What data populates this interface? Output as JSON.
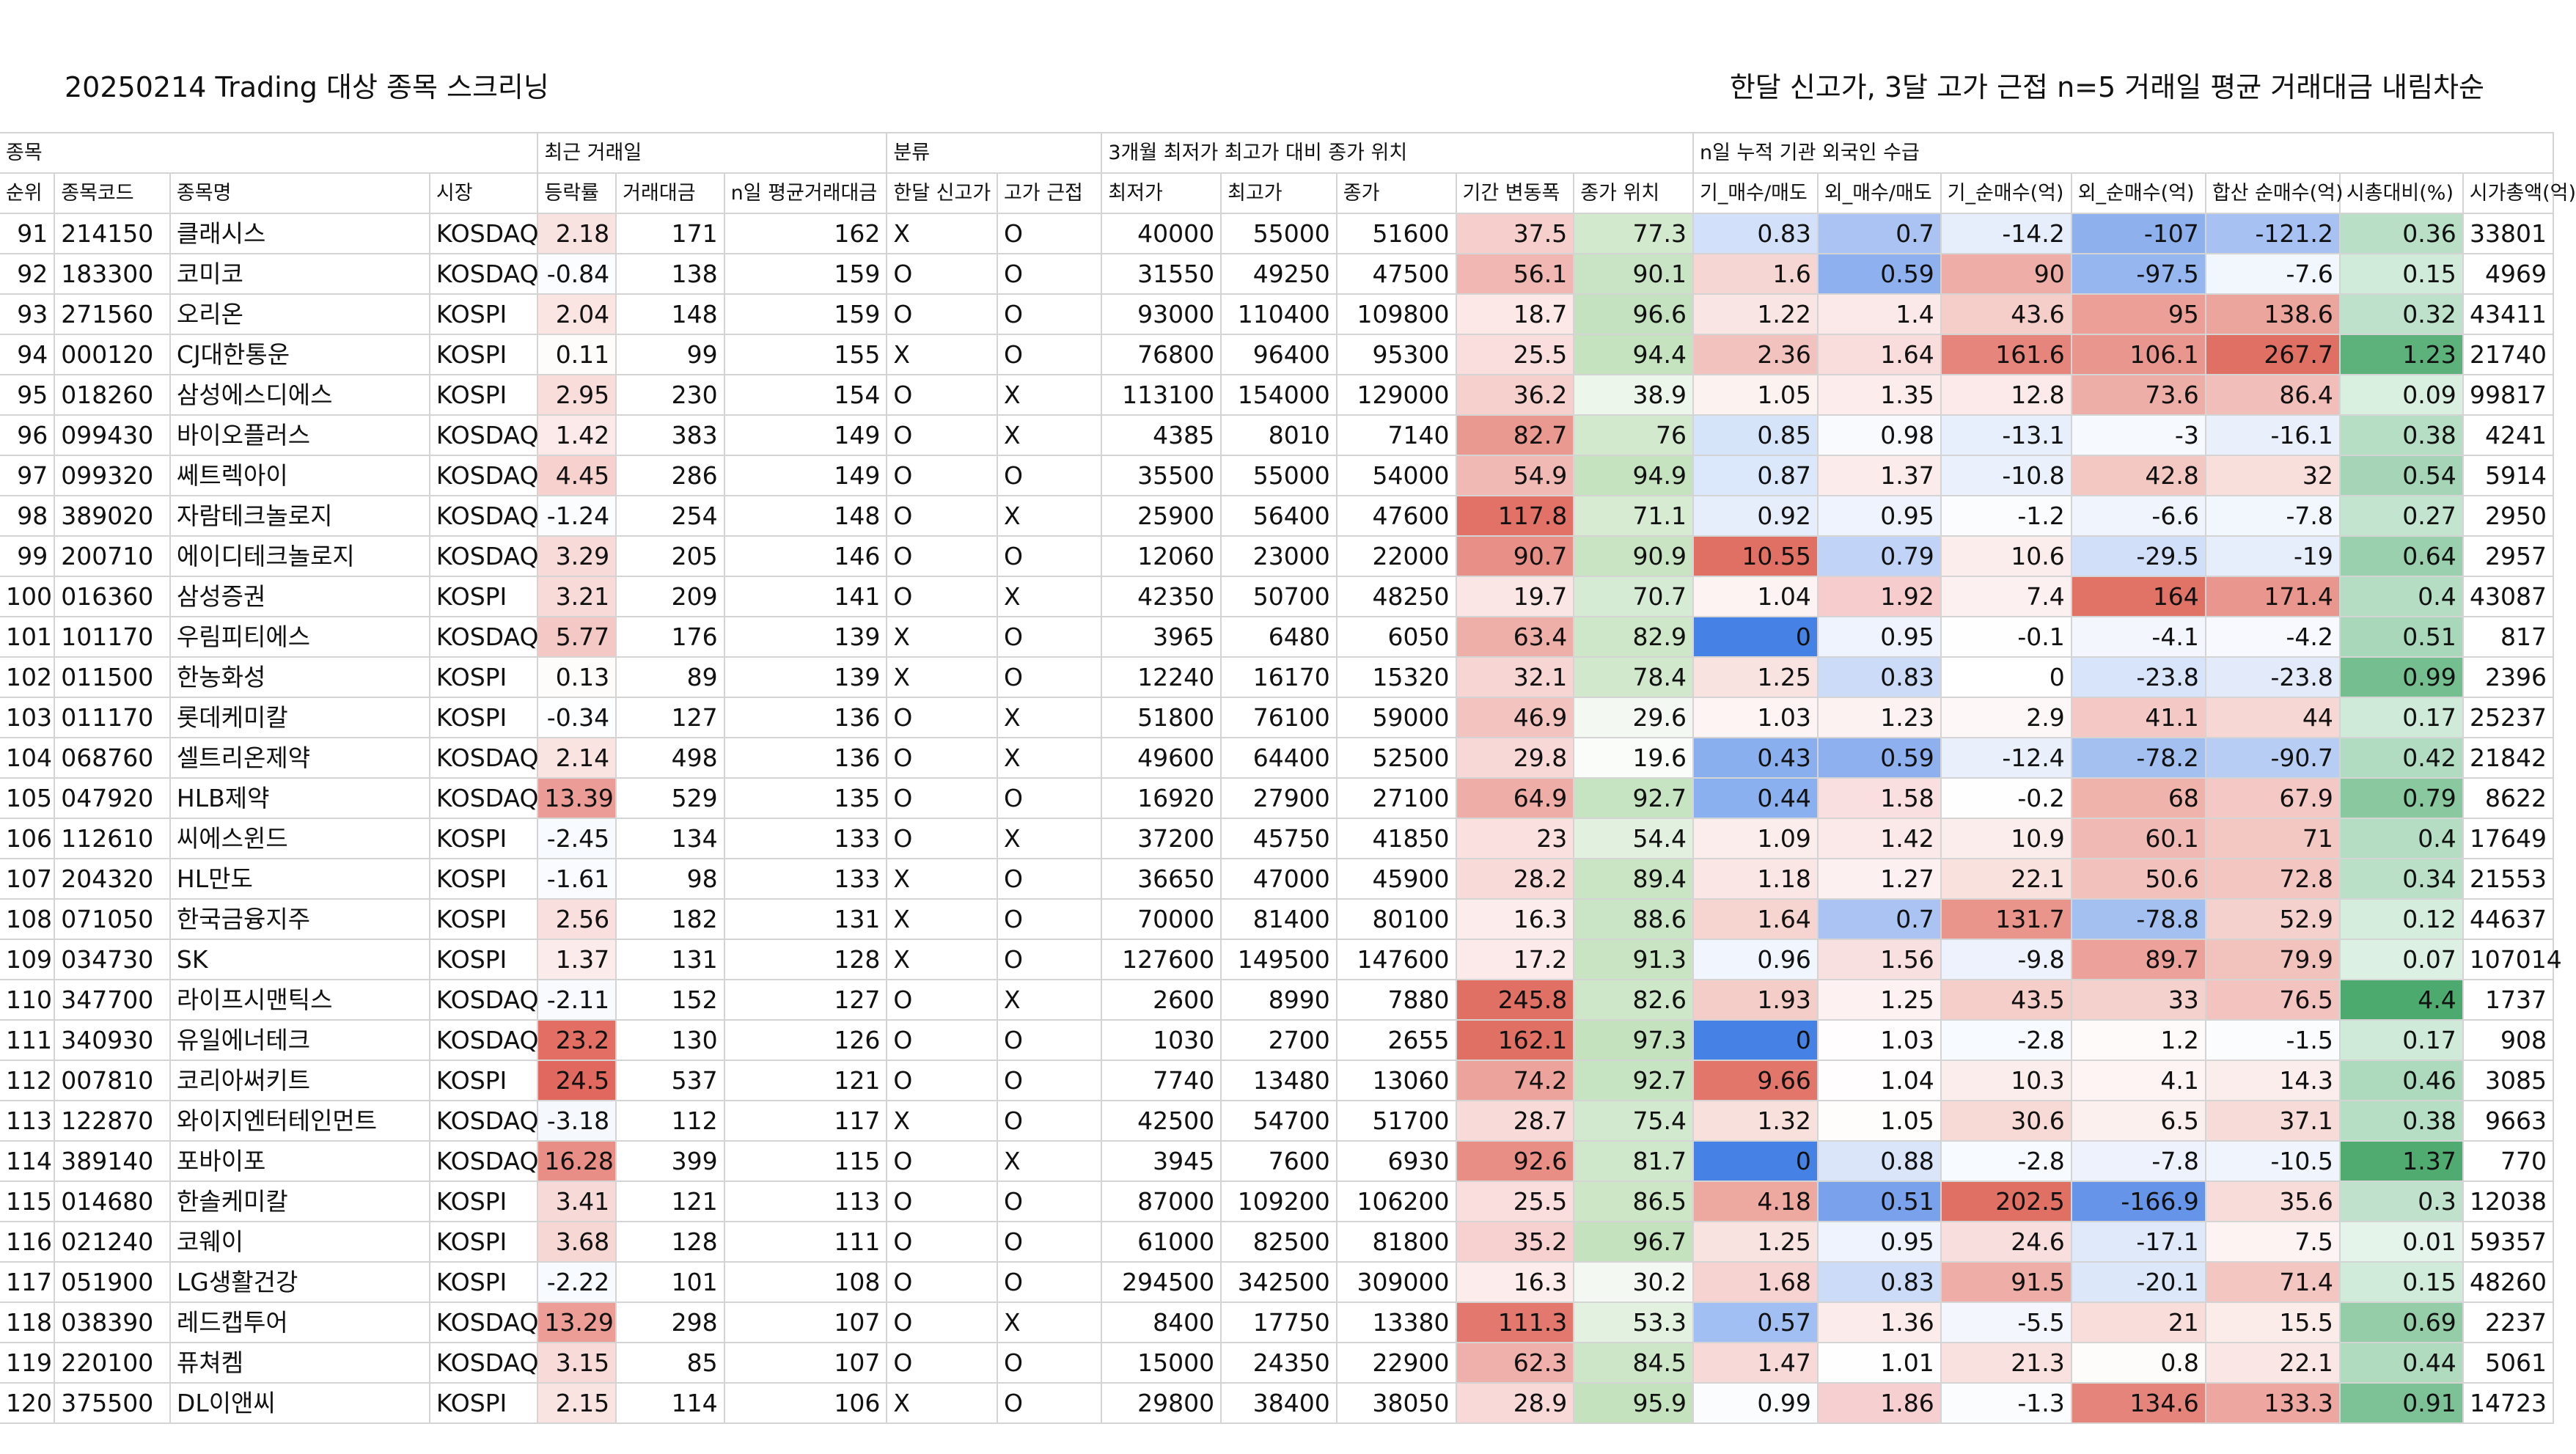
{
  "title": {
    "left": "20250214 Trading 대상 종목 스크리닝",
    "right": "한달 신고가, 3달 고가 근접 n=5 거래일 평균 거래대금 내림차순"
  },
  "groups": {
    "stock": "종목",
    "recent": "최근 거래일",
    "classify": "분류",
    "position": "3개월 최저가 최고가 대비 종가 위치",
    "flow": "n일 누적 기관 외국인 수급"
  },
  "headers": [
    "순위",
    "종목코드",
    "종목명",
    "시장",
    "등락률",
    "거래대금",
    "n일 평균거래대금",
    "한달 신고가",
    "고가 근접",
    "최저가",
    "최고가",
    "종가",
    "기간 변동폭",
    "종가 위치",
    "기_매수/매도",
    "외_매수/매도",
    "기_순매수(억)",
    "외_순매수(억)",
    "합산 순매수(억)",
    "시총대비(%)",
    "시가총액(억)"
  ],
  "rows": [
    [
      "91",
      "214150",
      "클래시스",
      "KOSDAQ",
      "2.18",
      "171",
      "162",
      "X",
      "O",
      "40000",
      "55000",
      "51600",
      "37.5",
      "77.3",
      "0.83",
      "0.7",
      "-14.2",
      "-107",
      "-121.2",
      "0.36",
      "33801"
    ],
    [
      "92",
      "183300",
      "코미코",
      "KOSDAQ",
      "-0.84",
      "138",
      "159",
      "O",
      "O",
      "31550",
      "49250",
      "47500",
      "56.1",
      "90.1",
      "1.6",
      "0.59",
      "90",
      "-97.5",
      "-7.6",
      "0.15",
      "4969"
    ],
    [
      "93",
      "271560",
      "오리온",
      "KOSPI",
      "2.04",
      "148",
      "159",
      "O",
      "O",
      "93000",
      "110400",
      "109800",
      "18.7",
      "96.6",
      "1.22",
      "1.4",
      "43.6",
      "95",
      "138.6",
      "0.32",
      "43411"
    ],
    [
      "94",
      "000120",
      "CJ대한통운",
      "KOSPI",
      "0.11",
      "99",
      "155",
      "X",
      "O",
      "76800",
      "96400",
      "95300",
      "25.5",
      "94.4",
      "2.36",
      "1.64",
      "161.6",
      "106.1",
      "267.7",
      "1.23",
      "21740"
    ],
    [
      "95",
      "018260",
      "삼성에스디에스",
      "KOSPI",
      "2.95",
      "230",
      "154",
      "O",
      "X",
      "113100",
      "154000",
      "129000",
      "36.2",
      "38.9",
      "1.05",
      "1.35",
      "12.8",
      "73.6",
      "86.4",
      "0.09",
      "99817"
    ],
    [
      "96",
      "099430",
      "바이오플러스",
      "KOSDAQ",
      "1.42",
      "383",
      "149",
      "O",
      "X",
      "4385",
      "8010",
      "7140",
      "82.7",
      "76",
      "0.85",
      "0.98",
      "-13.1",
      "-3",
      "-16.1",
      "0.38",
      "4241"
    ],
    [
      "97",
      "099320",
      "쎄트렉아이",
      "KOSDAQ",
      "4.45",
      "286",
      "149",
      "O",
      "O",
      "35500",
      "55000",
      "54000",
      "54.9",
      "94.9",
      "0.87",
      "1.37",
      "-10.8",
      "42.8",
      "32",
      "0.54",
      "5914"
    ],
    [
      "98",
      "389020",
      "자람테크놀로지",
      "KOSDAQ",
      "-1.24",
      "254",
      "148",
      "O",
      "X",
      "25900",
      "56400",
      "47600",
      "117.8",
      "71.1",
      "0.92",
      "0.95",
      "-1.2",
      "-6.6",
      "-7.8",
      "0.27",
      "2950"
    ],
    [
      "99",
      "200710",
      "에이디테크놀로지",
      "KOSDAQ",
      "3.29",
      "205",
      "146",
      "O",
      "O",
      "12060",
      "23000",
      "22000",
      "90.7",
      "90.9",
      "10.55",
      "0.79",
      "10.6",
      "-29.5",
      "-19",
      "0.64",
      "2957"
    ],
    [
      "100",
      "016360",
      "삼성증권",
      "KOSPI",
      "3.21",
      "209",
      "141",
      "O",
      "X",
      "42350",
      "50700",
      "48250",
      "19.7",
      "70.7",
      "1.04",
      "1.92",
      "7.4",
      "164",
      "171.4",
      "0.4",
      "43087"
    ],
    [
      "101",
      "101170",
      "우림피티에스",
      "KOSDAQ",
      "5.77",
      "176",
      "139",
      "X",
      "O",
      "3965",
      "6480",
      "6050",
      "63.4",
      "82.9",
      "0",
      "0.95",
      "-0.1",
      "-4.1",
      "-4.2",
      "0.51",
      "817"
    ],
    [
      "102",
      "011500",
      "한농화성",
      "KOSPI",
      "0.13",
      "89",
      "139",
      "X",
      "O",
      "12240",
      "16170",
      "15320",
      "32.1",
      "78.4",
      "1.25",
      "0.83",
      "0",
      "-23.8",
      "-23.8",
      "0.99",
      "2396"
    ],
    [
      "103",
      "011170",
      "롯데케미칼",
      "KOSPI",
      "-0.34",
      "127",
      "136",
      "O",
      "X",
      "51800",
      "76100",
      "59000",
      "46.9",
      "29.6",
      "1.03",
      "1.23",
      "2.9",
      "41.1",
      "44",
      "0.17",
      "25237"
    ],
    [
      "104",
      "068760",
      "셀트리온제약",
      "KOSDAQ",
      "2.14",
      "498",
      "136",
      "O",
      "X",
      "49600",
      "64400",
      "52500",
      "29.8",
      "19.6",
      "0.43",
      "0.59",
      "-12.4",
      "-78.2",
      "-90.7",
      "0.42",
      "21842"
    ],
    [
      "105",
      "047920",
      "HLB제약",
      "KOSDAQ",
      "13.39",
      "529",
      "135",
      "O",
      "O",
      "16920",
      "27900",
      "27100",
      "64.9",
      "92.7",
      "0.44",
      "1.58",
      "-0.2",
      "68",
      "67.9",
      "0.79",
      "8622"
    ],
    [
      "106",
      "112610",
      "씨에스윈드",
      "KOSPI",
      "-2.45",
      "134",
      "133",
      "O",
      "X",
      "37200",
      "45750",
      "41850",
      "23",
      "54.4",
      "1.09",
      "1.42",
      "10.9",
      "60.1",
      "71",
      "0.4",
      "17649"
    ],
    [
      "107",
      "204320",
      "HL만도",
      "KOSPI",
      "-1.61",
      "98",
      "133",
      "X",
      "O",
      "36650",
      "47000",
      "45900",
      "28.2",
      "89.4",
      "1.18",
      "1.27",
      "22.1",
      "50.6",
      "72.8",
      "0.34",
      "21553"
    ],
    [
      "108",
      "071050",
      "한국금융지주",
      "KOSPI",
      "2.56",
      "182",
      "131",
      "X",
      "O",
      "70000",
      "81400",
      "80100",
      "16.3",
      "88.6",
      "1.64",
      "0.7",
      "131.7",
      "-78.8",
      "52.9",
      "0.12",
      "44637"
    ],
    [
      "109",
      "034730",
      "SK",
      "KOSPI",
      "1.37",
      "131",
      "128",
      "X",
      "O",
      "127600",
      "149500",
      "147600",
      "17.2",
      "91.3",
      "0.96",
      "1.56",
      "-9.8",
      "89.7",
      "79.9",
      "0.07",
      "107014"
    ],
    [
      "110",
      "347700",
      "라이프시맨틱스",
      "KOSDAQ",
      "-2.11",
      "152",
      "127",
      "O",
      "X",
      "2600",
      "8990",
      "7880",
      "245.8",
      "82.6",
      "1.93",
      "1.25",
      "43.5",
      "33",
      "76.5",
      "4.4",
      "1737"
    ],
    [
      "111",
      "340930",
      "유일에너테크",
      "KOSDAQ",
      "23.2",
      "130",
      "126",
      "O",
      "O",
      "1030",
      "2700",
      "2655",
      "162.1",
      "97.3",
      "0",
      "1.03",
      "-2.8",
      "1.2",
      "-1.5",
      "0.17",
      "908"
    ],
    [
      "112",
      "007810",
      "코리아써키트",
      "KOSPI",
      "24.5",
      "537",
      "121",
      "O",
      "O",
      "7740",
      "13480",
      "13060",
      "74.2",
      "92.7",
      "9.66",
      "1.04",
      "10.3",
      "4.1",
      "14.3",
      "0.46",
      "3085"
    ],
    [
      "113",
      "122870",
      "와이지엔터테인먼트",
      "KOSDAQ",
      "-3.18",
      "112",
      "117",
      "X",
      "O",
      "42500",
      "54700",
      "51700",
      "28.7",
      "75.4",
      "1.32",
      "1.05",
      "30.6",
      "6.5",
      "37.1",
      "0.38",
      "9663"
    ],
    [
      "114",
      "389140",
      "포바이포",
      "KOSDAQ",
      "16.28",
      "399",
      "115",
      "O",
      "X",
      "3945",
      "7600",
      "6930",
      "92.6",
      "81.7",
      "0",
      "0.88",
      "-2.8",
      "-7.8",
      "-10.5",
      "1.37",
      "770"
    ],
    [
      "115",
      "014680",
      "한솔케미칼",
      "KOSPI",
      "3.41",
      "121",
      "113",
      "O",
      "O",
      "87000",
      "109200",
      "106200",
      "25.5",
      "86.5",
      "4.18",
      "0.51",
      "202.5",
      "-166.9",
      "35.6",
      "0.3",
      "12038"
    ],
    [
      "116",
      "021240",
      "코웨이",
      "KOSPI",
      "3.68",
      "128",
      "111",
      "O",
      "O",
      "61000",
      "82500",
      "81800",
      "35.2",
      "96.7",
      "1.25",
      "0.95",
      "24.6",
      "-17.1",
      "7.5",
      "0.01",
      "59357"
    ],
    [
      "117",
      "051900",
      "LG생활건강",
      "KOSPI",
      "-2.22",
      "101",
      "108",
      "O",
      "O",
      "294500",
      "342500",
      "309000",
      "16.3",
      "30.2",
      "1.68",
      "0.83",
      "91.5",
      "-20.1",
      "71.4",
      "0.15",
      "48260"
    ],
    [
      "118",
      "038390",
      "레드캡투어",
      "KOSDAQ",
      "13.29",
      "298",
      "107",
      "O",
      "X",
      "8400",
      "17750",
      "13380",
      "111.3",
      "53.3",
      "0.57",
      "1.36",
      "-5.5",
      "21",
      "15.5",
      "0.69",
      "2237"
    ],
    [
      "119",
      "220100",
      "퓨쳐켐",
      "KOSDAQ",
      "3.15",
      "85",
      "107",
      "O",
      "O",
      "15000",
      "24350",
      "22900",
      "62.3",
      "84.5",
      "1.47",
      "1.01",
      "21.3",
      "0.8",
      "22.1",
      "0.44",
      "5061"
    ],
    [
      "120",
      "375500",
      "DL이앤씨",
      "KOSPI",
      "2.15",
      "114",
      "106",
      "X",
      "O",
      "29800",
      "38400",
      "38050",
      "28.9",
      "95.9",
      "0.99",
      "1.86",
      "-1.3",
      "134.6",
      "133.3",
      "0.91",
      "14723"
    ]
  ]
}
